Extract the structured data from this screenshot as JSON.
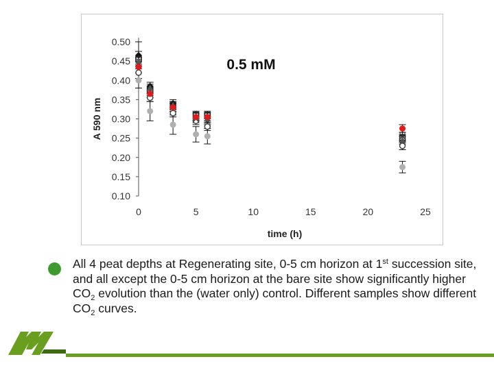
{
  "chart_data": {
    "type": "scatter",
    "title": "0.5 mM",
    "xlabel": "time (h)",
    "ylabel": "A 590 nm",
    "xlim": [
      0,
      25
    ],
    "ylim": [
      0.1,
      0.5
    ],
    "xticks": [
      0,
      5,
      10,
      15,
      20,
      25
    ],
    "yticks": [
      0.1,
      0.15,
      0.2,
      0.25,
      0.3,
      0.35,
      0.4,
      0.45,
      0.5
    ],
    "tick_labels_x": [
      "0",
      "5",
      "10",
      "15",
      "20",
      "25"
    ],
    "tick_labels_y": [
      "0.10",
      "0.15",
      "0.20",
      "0.25",
      "0.30",
      "0.35",
      "0.40",
      "0.45",
      "0.50"
    ],
    "grid": false,
    "legend": "none",
    "series": [
      {
        "marker": "diamond",
        "color": "#111111",
        "points": [
          [
            0,
            0.465
          ],
          [
            1,
            0.385
          ],
          [
            3,
            0.34
          ],
          [
            5,
            0.305
          ],
          [
            6,
            0.305
          ],
          [
            23,
            0.24
          ]
        ],
        "err": [
          0.035,
          0.01,
          0.01,
          0.01,
          0.01,
          0.02
        ]
      },
      {
        "marker": "square",
        "color": "#222222",
        "points": [
          [
            0,
            0.455
          ],
          [
            1,
            0.375
          ],
          [
            3,
            0.335
          ],
          [
            5,
            0.31
          ],
          [
            6,
            0.31
          ],
          [
            23,
            0.25
          ]
        ],
        "err": [
          0.02,
          0.01,
          0.01,
          0.01,
          0.01,
          0.01
        ]
      },
      {
        "marker": "circle-open",
        "color": "#444444",
        "points": [
          [
            0,
            0.42
          ],
          [
            1,
            0.355
          ],
          [
            3,
            0.315
          ],
          [
            5,
            0.295
          ],
          [
            6,
            0.28
          ],
          [
            23,
            0.23
          ]
        ],
        "err": [
          0.015,
          0.01,
          0.01,
          0.01,
          0.01,
          0.01
        ]
      },
      {
        "marker": "x",
        "color": "#333333",
        "points": [
          [
            0,
            0.445
          ],
          [
            1,
            0.37
          ],
          [
            3,
            0.33
          ],
          [
            5,
            0.3
          ],
          [
            6,
            0.295
          ],
          [
            23,
            0.255
          ]
        ],
        "err": [
          0.01,
          0.01,
          0.01,
          0.01,
          0.01,
          0.01
        ]
      },
      {
        "marker": "triangle",
        "color": "#555555",
        "points": [
          [
            0,
            0.45
          ],
          [
            1,
            0.38
          ],
          [
            3,
            0.335
          ],
          [
            5,
            0.305
          ],
          [
            6,
            0.3
          ],
          [
            23,
            0.245
          ]
        ],
        "err": [
          0.01,
          0.01,
          0.01,
          0.01,
          0.01,
          0.01
        ]
      },
      {
        "marker": "circle",
        "color": "#e01b1b",
        "points": [
          [
            0,
            0.435
          ],
          [
            1,
            0.365
          ],
          [
            3,
            0.33
          ],
          [
            5,
            0.305
          ],
          [
            6,
            0.305
          ],
          [
            23,
            0.275
          ]
        ],
        "err": [
          0.015,
          0.01,
          0.01,
          0.01,
          0.01,
          0.01
        ]
      },
      {
        "marker": "circle",
        "color": "#b0b0b0",
        "points": [
          [
            0,
            0.4
          ],
          [
            1,
            0.32
          ],
          [
            3,
            0.285
          ],
          [
            5,
            0.26
          ],
          [
            6,
            0.255
          ],
          [
            23,
            0.175
          ]
        ],
        "err": [
          0.02,
          0.025,
          0.025,
          0.02,
          0.02,
          0.015
        ]
      }
    ]
  },
  "caption": {
    "part1": "All 4 peat depths at Regenerating site, 0-5 cm horizon at 1",
    "sup1": "st",
    "part2": " succession site, and all except the 0-5 cm horizon at the bare site show significantly higher CO",
    "sub1": "2",
    "part3": " evolution than the (water only) control. Different samples show different CO",
    "sub2": "2",
    "part4": " curves."
  },
  "colors": {
    "accent": "#6a9e1f",
    "bullet": "#3e9b2e"
  }
}
